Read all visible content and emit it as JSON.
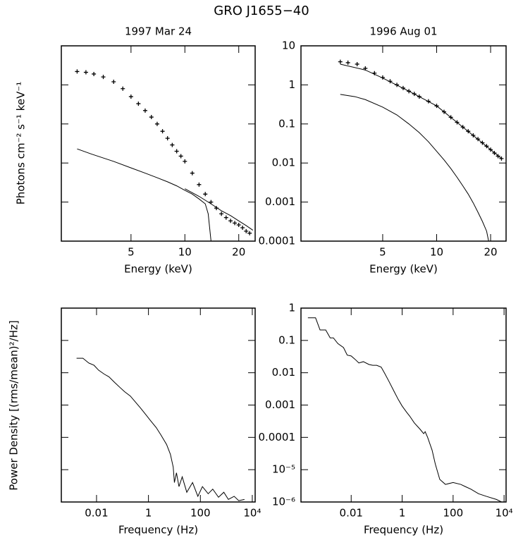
{
  "title": "GRO J1655−40",
  "chart_data": [
    {
      "type": "line",
      "title": "1997 Mar 24",
      "xlabel": "Energy (keV)",
      "ylabel": "Photons cm⁻² s⁻¹ keV⁻¹",
      "xlog": true,
      "ylog": true,
      "xlim": [
        2.04,
        24.7
      ],
      "ylim": [
        0.0001,
        10
      ],
      "xticks": [
        5,
        10,
        20
      ],
      "yticks": [
        0.0001,
        0.001,
        0.01,
        0.1,
        1,
        10
      ],
      "ytick_labels": false,
      "series": [
        {
          "color": "#000000",
          "marker": true,
          "x": [
            2.5,
            2.8,
            3.1,
            3.5,
            4,
            4.5,
            5,
            5.5,
            6,
            6.5,
            7,
            7.5,
            8,
            8.5,
            9,
            9.5,
            10,
            11,
            12,
            13,
            14,
            15,
            16,
            17,
            18,
            19,
            20,
            21,
            22,
            23
          ],
          "values": [
            2.2,
            2.1,
            1.9,
            1.6,
            1.2,
            0.8,
            0.5,
            0.33,
            0.22,
            0.15,
            0.1,
            0.065,
            0.043,
            0.029,
            0.02,
            0.015,
            0.011,
            0.0055,
            0.0028,
            0.0016,
            0.001,
            0.0007,
            0.0005,
            0.0004,
            0.00033,
            0.00029,
            0.00026,
            0.00022,
            0.00018,
            0.00016
          ]
        },
        {
          "color": "#000000",
          "x": [
            2.5,
            3,
            4,
            5,
            6,
            7,
            8,
            9,
            10,
            11,
            12,
            13,
            13.5,
            14
          ],
          "values": [
            0.023,
            0.017,
            0.011,
            0.0075,
            0.0055,
            0.0042,
            0.0033,
            0.0026,
            0.002,
            0.0016,
            0.0012,
            0.0009,
            0.0005,
            0.0001
          ]
        },
        {
          "color": "#000000",
          "x": [
            10,
            12,
            14,
            16,
            18,
            20,
            22,
            24
          ],
          "values": [
            0.0022,
            0.0014,
            0.0009,
            0.0006,
            0.00045,
            0.00033,
            0.00025,
            0.00019
          ]
        }
      ]
    },
    {
      "type": "line",
      "title": "1996 Aug 01",
      "xlabel": "Energy (keV)",
      "xlog": true,
      "ylog": true,
      "xlim": [
        1.75,
        24.4
      ],
      "ylim": [
        0.0001,
        10
      ],
      "xticks": [
        5,
        10,
        20
      ],
      "yticks": [
        0.0001,
        0.001,
        0.01,
        0.1,
        1,
        10
      ],
      "ytick_labels": true,
      "series": [
        {
          "color": "#000000",
          "marker": true,
          "x": [
            2.9,
            3.2,
            3.6,
            4,
            4.5,
            5,
            5.5,
            6,
            6.5,
            7,
            7.5,
            8,
            9,
            10,
            11,
            12,
            13,
            14,
            15,
            16,
            17,
            18,
            19,
            20,
            21,
            22,
            23
          ],
          "values": [
            3.9,
            3.7,
            3.4,
            2.65,
            2.0,
            1.55,
            1.24,
            1.0,
            0.83,
            0.69,
            0.59,
            0.5,
            0.38,
            0.29,
            0.204,
            0.148,
            0.11,
            0.083,
            0.065,
            0.051,
            0.041,
            0.033,
            0.027,
            0.022,
            0.018,
            0.015,
            0.013
          ]
        },
        {
          "color": "#000000",
          "x": [
            2.9,
            4,
            5,
            7,
            10,
            14,
            20,
            23
          ],
          "values": [
            3.4,
            2.4,
            1.5,
            0.69,
            0.29,
            0.083,
            0.022,
            0.013
          ]
        },
        {
          "color": "#000000",
          "x": [
            2.9,
            3.5,
            4,
            5,
            6,
            7,
            8,
            9,
            10,
            11,
            12,
            13,
            14,
            15,
            16,
            17,
            18,
            19,
            19.5
          ],
          "values": [
            0.57,
            0.5,
            0.42,
            0.27,
            0.17,
            0.1,
            0.06,
            0.035,
            0.02,
            0.012,
            0.0072,
            0.0043,
            0.0026,
            0.0016,
            0.00095,
            0.00055,
            0.00032,
            0.00018,
            0.0001
          ]
        }
      ]
    },
    {
      "type": "line",
      "xlabel": "Frequency (Hz)",
      "ylabel": "Power Density [(rms/mean)²/Hz]",
      "xlog": true,
      "ylog": true,
      "xlim": [
        0.00044,
        12900
      ],
      "ylim": [
        1e-06,
        1
      ],
      "xticks": [
        0.01,
        1,
        100,
        {
          "value": 10000,
          "label": "10⁴"
        }
      ],
      "yticks": [
        1,
        0.1,
        0.01,
        0.001,
        0.0001,
        1e-05,
        1e-06
      ],
      "ytick_labels": false,
      "series": [
        {
          "color": "#000000",
          "x": [
            0.0017,
            0.003,
            0.005,
            0.008,
            0.012,
            0.02,
            0.03,
            0.05,
            0.08,
            0.12,
            0.2,
            0.3,
            0.5,
            0.8,
            1.2,
            2,
            3,
            5,
            7,
            9,
            10,
            12,
            15,
            20,
            30,
            50,
            80,
            120,
            200,
            300,
            500,
            800,
            1200,
            2000,
            3000,
            5000
          ],
          "values": [
            0.028,
            0.028,
            0.02,
            0.017,
            0.012,
            0.009,
            0.0075,
            0.005,
            0.0035,
            0.0026,
            0.0019,
            0.0013,
            0.0008,
            0.0005,
            0.00033,
            0.0002,
            0.00012,
            6e-05,
            3e-05,
            1.2e-05,
            4e-06,
            8e-06,
            3e-06,
            6e-06,
            2e-06,
            4e-06,
            1.5e-06,
            3e-06,
            1.8e-06,
            2.5e-06,
            1.4e-06,
            2e-06,
            1.2e-06,
            1.5e-06,
            1.1e-06,
            1.2e-06
          ]
        }
      ]
    },
    {
      "type": "line",
      "xlabel": "Frequency (Hz)",
      "xlog": true,
      "ylog": true,
      "xlim": [
        0.000107,
        12000
      ],
      "ylim": [
        1e-06,
        1
      ],
      "xticks": [
        0.01,
        1,
        100,
        {
          "value": 10000,
          "label": "10⁴"
        }
      ],
      "yticks": [
        1,
        0.1,
        0.01,
        0.001,
        0.0001,
        {
          "value": 1e-05,
          "label": "10⁻⁵"
        },
        {
          "value": 1e-06,
          "label": "10⁻⁶"
        }
      ],
      "ytick_labels": true,
      "series": [
        {
          "color": "#000000",
          "x": [
            0.0002,
            0.0004,
            0.0006,
            0.001,
            0.0015,
            0.002,
            0.003,
            0.005,
            0.007,
            0.01,
            0.015,
            0.02,
            0.03,
            0.05,
            0.07,
            0.1,
            0.15,
            0.2,
            0.3,
            0.5,
            0.7,
            1,
            1.5,
            2,
            3,
            5,
            7,
            8,
            10,
            15,
            20,
            30,
            50,
            100,
            200,
            300,
            500,
            1000,
            2000,
            5000,
            8000
          ],
          "values": [
            0.5,
            0.5,
            0.21,
            0.21,
            0.12,
            0.12,
            0.08,
            0.06,
            0.035,
            0.033,
            0.025,
            0.02,
            0.022,
            0.018,
            0.017,
            0.017,
            0.015,
            0.01,
            0.0055,
            0.0025,
            0.0015,
            0.00093,
            0.0006,
            0.00045,
            0.00028,
            0.00018,
            0.00013,
            0.00015,
            0.0001,
            4e-05,
            1.5e-05,
            5e-06,
            3.5e-06,
            4e-06,
            3.5e-06,
            3e-06,
            2.5e-06,
            1.8e-06,
            1.5e-06,
            1.2e-06,
            1e-06
          ]
        }
      ]
    }
  ]
}
